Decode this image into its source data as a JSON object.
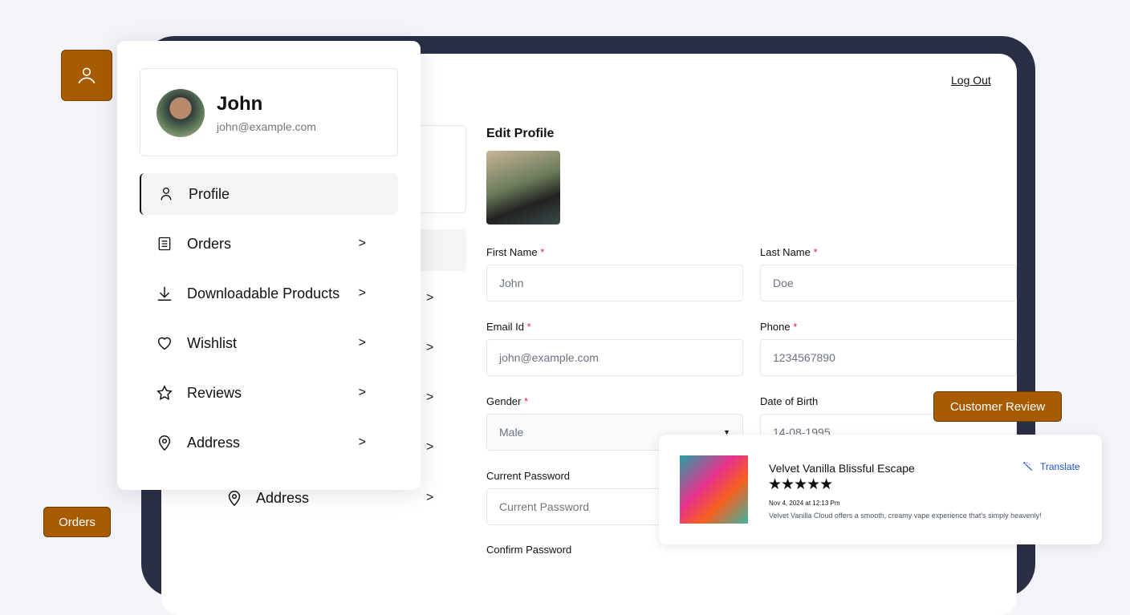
{
  "header": {
    "logout": "Log Out"
  },
  "background_nav": {
    "address": "Address"
  },
  "form": {
    "title": "Edit Profile",
    "required_mark": "*",
    "first_name": {
      "label": "First Name",
      "value": "John"
    },
    "last_name": {
      "label": "Last Name",
      "value": "Doe"
    },
    "email": {
      "label": "Email Id",
      "value": "john@example.com"
    },
    "phone": {
      "label": "Phone",
      "value": "1234567890"
    },
    "gender": {
      "label": "Gender",
      "value": "Male"
    },
    "dob": {
      "label": "Date of Birth",
      "value": "14-08-1995"
    },
    "current_password": {
      "label": "Current Password",
      "placeholder": "Current Password"
    },
    "confirm_password": {
      "label": "Confirm Password"
    }
  },
  "popup": {
    "name": "John",
    "email": "john@example.com",
    "items": [
      {
        "label": "Profile",
        "icon": "user-icon"
      },
      {
        "label": "Orders",
        "icon": "list-icon"
      },
      {
        "label": "Downloadable Products",
        "icon": "download-icon"
      },
      {
        "label": "Wishlist",
        "icon": "heart-icon"
      },
      {
        "label": "Reviews",
        "icon": "star-icon"
      },
      {
        "label": "Address",
        "icon": "map-pin-icon"
      }
    ]
  },
  "tags": {
    "customer_review": "Customer Review",
    "orders": "Orders"
  },
  "review": {
    "title": "Velvet Vanilla Blissful Escape",
    "rating": 5,
    "stars": "★★★★★",
    "date": "Nov 4, 2024 at 12:13 Pm",
    "text": "Velvet Vanilla Cloud offers a smooth, creamy vape experience that’s simply heavenly!",
    "translate": "Translate"
  },
  "colors": {
    "accent": "#a85b00",
    "frame": "#2b2f45",
    "link": "#1d4ed8",
    "required": "#e11d48"
  }
}
